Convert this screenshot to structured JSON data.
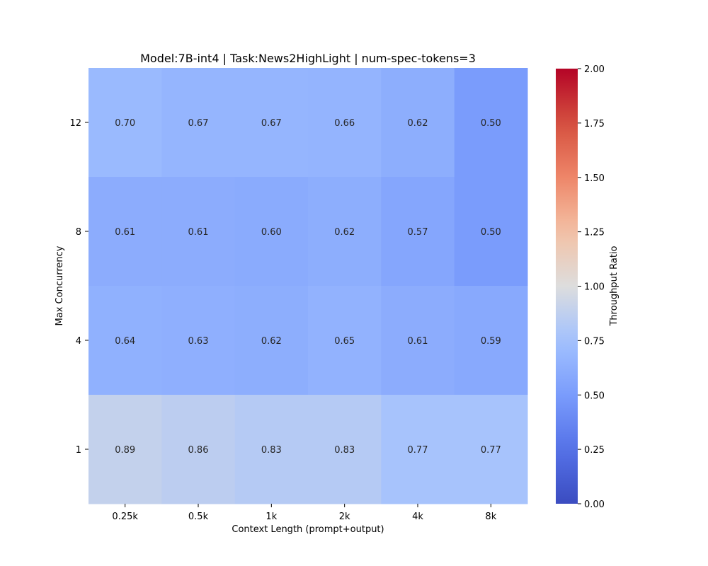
{
  "chart_data": {
    "type": "heatmap",
    "title": "Model:7B-int4  |  Task:News2HighLight | num-spec-tokens=3",
    "xlabel": "Context Length (prompt+output)",
    "ylabel": "Max Concurrency",
    "x_categories": [
      "0.25k",
      "0.5k",
      "1k",
      "2k",
      "4k",
      "8k"
    ],
    "y_categories": [
      "12",
      "8",
      "4",
      "1"
    ],
    "values": [
      [
        0.7,
        0.67,
        0.67,
        0.66,
        0.62,
        0.5
      ],
      [
        0.61,
        0.61,
        0.6,
        0.62,
        0.57,
        0.5
      ],
      [
        0.64,
        0.63,
        0.62,
        0.65,
        0.61,
        0.59
      ],
      [
        0.89,
        0.86,
        0.83,
        0.83,
        0.77,
        0.77
      ]
    ],
    "value_format": "0.00",
    "colorbar": {
      "label": "Throughput Ratio",
      "colormap": "coolwarm",
      "min": 0.0,
      "max": 2.0,
      "ticks": [
        "0.00",
        "0.25",
        "0.50",
        "0.75",
        "1.00",
        "1.25",
        "1.50",
        "1.75",
        "2.00"
      ]
    }
  }
}
